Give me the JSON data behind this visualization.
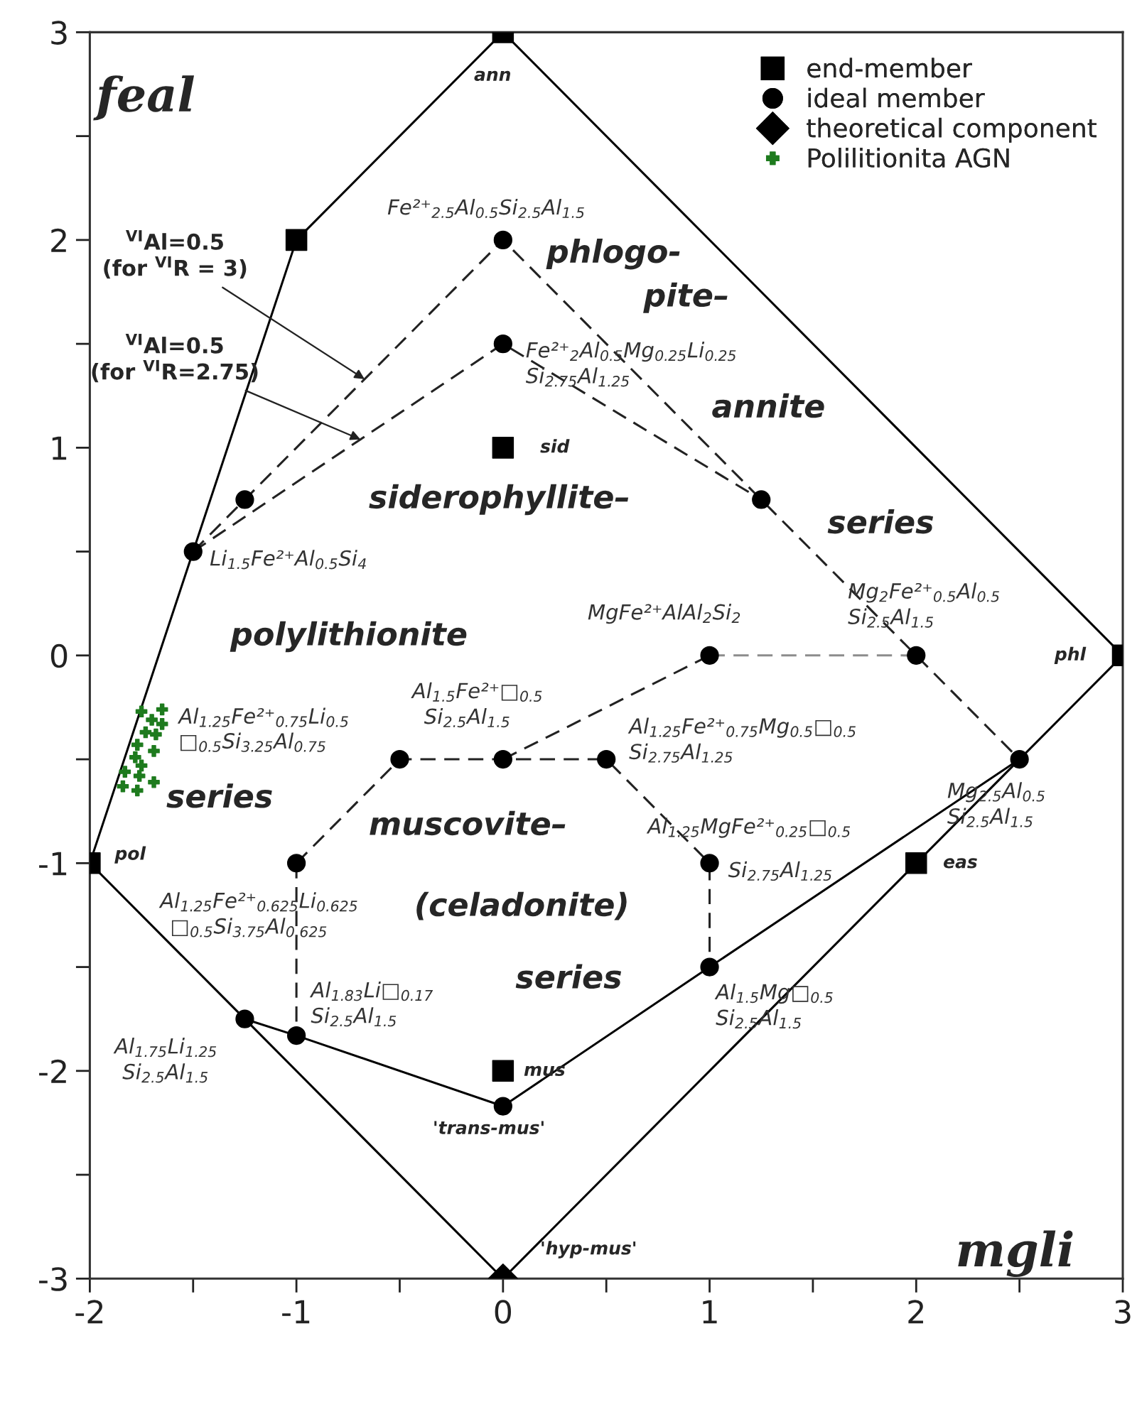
{
  "chart_data": {
    "type": "scatter",
    "xlim": [
      -2,
      3
    ],
    "ylim": [
      -3,
      3
    ],
    "xticks": [
      -2,
      {
        "value": -1.5,
        "label": null
      },
      -1,
      {
        "value": -0.5,
        "label": null
      },
      0,
      {
        "value": 0.5,
        "label": null
      },
      1,
      {
        "value": 1.5,
        "label": null
      },
      2,
      {
        "value": 2.5,
        "label": null
      },
      3
    ],
    "yticks": [
      -3,
      {
        "value": -2.5,
        "label": null
      },
      -2,
      {
        "value": -1.5,
        "label": null
      },
      -1,
      {
        "value": -0.5,
        "label": null
      },
      0,
      {
        "value": 0.5,
        "label": null
      },
      1,
      {
        "value": 1.5,
        "label": null
      },
      2,
      {
        "value": 2.5,
        "label": null
      },
      3
    ],
    "legend": "top right",
    "series": [
      {
        "type": "line",
        "color": "#000000",
        "line_style": "solid",
        "marker": "none",
        "x": [
          -2,
          -1.5,
          -1,
          0,
          3
        ],
        "values": [
          -1,
          0.5,
          2,
          3,
          0
        ]
      },
      {
        "type": "line",
        "color": "#000000",
        "line_style": "solid",
        "marker": "none",
        "x": [
          0,
          2,
          2.5,
          3
        ],
        "values": [
          -3,
          -1,
          -0.5,
          0
        ]
      },
      {
        "type": "line",
        "color": "#000000",
        "line_style": "solid",
        "marker": "none",
        "x": [
          -2,
          -1.25,
          0
        ],
        "values": [
          -1,
          -1.75,
          -3
        ]
      },
      {
        "type": "line",
        "color": "#000000",
        "line_style": "solid",
        "marker": "none",
        "x": [
          -1.25,
          -1,
          0,
          1,
          2.5
        ],
        "values": [
          -1.75,
          -1.83,
          -2.17,
          -1.5,
          -0.5
        ]
      },
      {
        "type": "line",
        "color": "#222222",
        "line_style": "dashed",
        "marker": "none",
        "x": [
          -1.5,
          -1.25,
          0,
          1.25,
          2,
          2.5
        ],
        "values": [
          0.5,
          0.75,
          2,
          0.75,
          0,
          -0.5
        ]
      },
      {
        "type": "line",
        "color": "#222222",
        "line_style": "dashed",
        "marker": "none",
        "x": [
          -1.5,
          0,
          1.25
        ],
        "values": [
          0.5,
          1.5,
          0.75
        ]
      },
      {
        "type": "line",
        "color": "#8c8c8c",
        "line_style": "dashed",
        "marker": "none",
        "x": [
          1,
          2
        ],
        "values": [
          0,
          0
        ]
      },
      {
        "type": "line",
        "color": "#222222",
        "line_style": "dashed",
        "marker": "none",
        "x": [
          0,
          1
        ],
        "values": [
          -0.5,
          0
        ]
      },
      {
        "type": "line",
        "color": "#222222",
        "line_style": "dashed",
        "marker": "none",
        "x": [
          -1,
          -0.5,
          0,
          0.5,
          1,
          1
        ],
        "values": [
          -1,
          -0.5,
          -0.5,
          -0.5,
          -1,
          -1.5
        ]
      },
      {
        "type": "line",
        "color": "#222222",
        "line_style": "dashed",
        "marker": "none",
        "x": [
          -1,
          -1
        ],
        "values": [
          -1,
          -1.83
        ]
      },
      {
        "name": "end-member",
        "color": "#000000",
        "marker": "square",
        "x": [
          0,
          -1,
          0,
          3,
          -2,
          2,
          0
        ],
        "values": [
          3,
          2,
          1,
          0,
          -1,
          -1,
          -2
        ]
      },
      {
        "name": "ideal member",
        "color": "#000000",
        "marker": "circle",
        "x": [
          0,
          0,
          -1.25,
          -1.5,
          1.25,
          1,
          2,
          -0.5,
          0,
          0.5,
          2.5,
          -1,
          1,
          1,
          -1.25,
          -1,
          0
        ],
        "values": [
          2,
          1.5,
          0.75,
          0.5,
          0.75,
          0,
          0,
          -0.5,
          -0.5,
          -0.5,
          -0.5,
          -1,
          -1,
          -1.5,
          -1.75,
          -1.83,
          -2.17
        ]
      },
      {
        "name": "theoretical component",
        "color": "#000000",
        "marker": "diamond",
        "x": [
          0
        ],
        "values": [
          -3
        ]
      },
      {
        "name": "Polilitionita AGN",
        "color": "#1e7b1e",
        "marker": "cross",
        "x": [
          -1.75,
          -1.65,
          -1.7,
          -1.65,
          -1.73,
          -1.68,
          -1.77,
          -1.69,
          -1.78,
          -1.75,
          -1.83,
          -1.76,
          -1.69,
          -1.84,
          -1.77
        ],
        "values": [
          -0.27,
          -0.26,
          -0.31,
          -0.33,
          -0.37,
          -0.38,
          -0.43,
          -0.46,
          -0.49,
          -0.53,
          -0.56,
          -0.58,
          -0.61,
          -0.63,
          -0.65
        ]
      }
    ],
    "annotations": [
      {
        "text": "$^{VI}$Al=0.5\n(for $^{VI}$R = 3)",
        "x": -0.67,
        "y": 1.33
      },
      {
        "text": "$^{VI}$Al=0.5\n(for $^{VI}$R=2.75)",
        "x": -0.69,
        "y": 1.04
      },
      "feal",
      "mgli",
      {
        "text": "ann",
        "x": 0,
        "y": 3
      },
      {
        "text": "sid",
        "x": 0,
        "y": 1
      },
      {
        "text": "phl",
        "x": 3,
        "y": 0
      },
      {
        "text": "pol",
        "x": -2,
        "y": -1
      },
      {
        "text": "eas",
        "x": 2,
        "y": -1
      },
      {
        "text": "mus",
        "x": 0,
        "y": -2
      },
      {
        "text": "'trans-mus'",
        "x": 0,
        "y": -2.17
      },
      {
        "text": "'hyp-mus'",
        "x": 0,
        "y": -3
      },
      "phlogo-",
      "pite–",
      "annite",
      "series",
      "siderophyllite–",
      "polylithionite",
      "series",
      "muscovite–",
      "(celadonite)",
      "series",
      {
        "text": "Fe²⁺$_{2.5}$Al$_{0.5}$Si$_{2.5}$Al$_{1.5}$",
        "x": 0,
        "y": 2
      },
      {
        "text": "Fe²⁺$_{2}$Al$_{0.5}$Mg$_{0.25}$Li$_{0.25}$",
        "x": 0,
        "y": 1.5
      },
      {
        "text": "Si$_{2.75}$Al$_{1.25}$",
        "x": 0,
        "y": 1.5
      },
      {
        "text": "Li$_{1.5}$Fe²⁺Al$_{0.5}$Si$_{4}$",
        "x": -1.5,
        "y": 0.5
      },
      {
        "text": "Mg$_{2}$Fe²⁺$_{0.5}$Al$_{0.5}$",
        "x": 2,
        "y": 0
      },
      {
        "text": "Si$_{2.5}$Al$_{1.5}$",
        "x": 2,
        "y": 0
      },
      {
        "text": "MgFe²⁺AlAl$_{2}$Si$_{2}$",
        "x": 1,
        "y": 0
      },
      {
        "text": "Al$_{1.5}$Fe²⁺□$_{0.5}$",
        "x": 0,
        "y": -0.5
      },
      {
        "text": "Si$_{2.5}$Al$_{1.5}$",
        "x": 0,
        "y": -0.5
      },
      "Al$_{1.25}$Fe²⁺$_{0.75}$Li$_{0.5}$",
      "□$_{0.5}$Si$_{3.25}$Al$_{0.75}$",
      {
        "text": "Al$_{1.25}$Fe²⁺$_{0.75}$Mg$_{0.5}$□$_{0.5}$",
        "x": 0.5,
        "y": -0.5
      },
      {
        "text": "Si$_{2.75}$Al$_{1.25}$",
        "x": 0.5,
        "y": -0.5
      },
      {
        "text": "Al$_{1.25}$MgFe²⁺$_{0.25}$□$_{0.5}$",
        "x": 1,
        "y": -1
      },
      {
        "text": "Si$_{2.75}$Al$_{1.25}$",
        "x": 1,
        "y": -1
      },
      {
        "text": "Mg$_{2.5}$Al$_{0.5}$",
        "x": 2.5,
        "y": -0.5
      },
      {
        "text": "Si$_{2.5}$Al$_{1.5}$",
        "x": 2.5,
        "y": -0.5
      },
      {
        "text": "Al$_{1.25}$Fe²⁺$_{0.625}$Li$_{0.625}$",
        "x": -1,
        "y": -1
      },
      {
        "text": "□$_{0.5}$Si$_{3.75}$Al$_{0.625}$",
        "x": -1,
        "y": -1
      },
      {
        "text": "Al$_{1.83}$Li□$_{0.17}$",
        "x": -1,
        "y": -1.83
      },
      {
        "text": "Si$_{2.5}$Al$_{1.5}$",
        "x": -1,
        "y": -1.83
      },
      {
        "text": "Al$_{1.75}$Li$_{1.25}$",
        "x": -1.25,
        "y": -1.75
      },
      {
        "text": "Si$_{2.5}$Al$_{1.5}$",
        "x": -1.25,
        "y": -1.75
      },
      {
        "text": "Al$_{1.5}$Mg□$_{0.5}$",
        "x": 1,
        "y": -1.5
      },
      {
        "text": "Si$_{2.5}$Al$_{1.5}$",
        "x": 1,
        "y": -1.5
      }
    ]
  }
}
